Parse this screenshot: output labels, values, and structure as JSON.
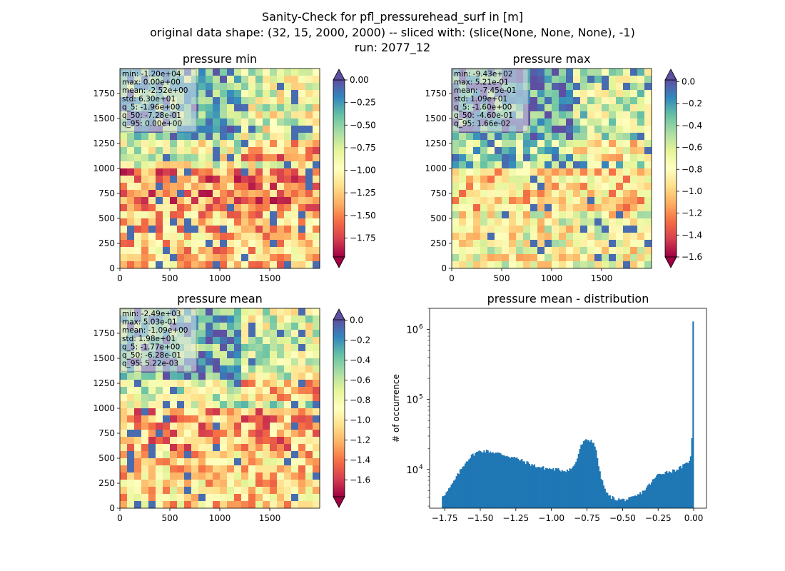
{
  "figure": {
    "title_lines": [
      "Sanity-Check for pfl_pressurehead_surf in [m]",
      "original data shape: (32, 15, 2000, 2000) -- sliced with: (slice(None, None, None), -1)",
      "run: 2077_12"
    ]
  },
  "chart_data": [
    {
      "type": "heatmap",
      "title": "pressure min",
      "xlim": [
        0,
        2000
      ],
      "ylim": [
        0,
        2000
      ],
      "xticks": [
        0,
        500,
        1000,
        1500
      ],
      "yticks": [
        0,
        250,
        500,
        750,
        1000,
        1250,
        1500,
        1750
      ],
      "stats": [
        "min: -1.20e+04",
        "max: 0.00e+00",
        "mean: -2.52e+00",
        "std: 6.30e+01",
        "q_5: -1.96e+00",
        "q_50: -7.28e-01",
        "q_95: 0.00e+00"
      ],
      "colorbar": {
        "colormap": "Spectral",
        "vmin": -1.96,
        "vmax": 0.0,
        "ticks": [
          0.0,
          -0.25,
          -0.5,
          -0.75,
          -1.0,
          -1.25,
          -1.5,
          -1.75
        ],
        "tick_labels": [
          "0.00",
          "−0.25",
          "−0.50",
          "−0.75",
          "−1.00",
          "−1.25",
          "−1.50",
          "−1.75"
        ],
        "extend": "both"
      }
    },
    {
      "type": "heatmap",
      "title": "pressure max",
      "xlim": [
        0,
        2000
      ],
      "ylim": [
        0,
        2000
      ],
      "xticks": [
        0,
        500,
        1000,
        1500
      ],
      "yticks": [
        0,
        250,
        500,
        750,
        1000,
        1250,
        1500,
        1750
      ],
      "stats": [
        "min: -9.43e+02",
        "max: 5.21e-01",
        "mean: -7.45e-01",
        "std: 1.09e+01",
        "q_5: -1.60e+00",
        "q_50: -4.60e-01",
        "q_95: 1.66e-02"
      ],
      "colorbar": {
        "colormap": "Spectral",
        "vmin": -1.6,
        "vmax": 0.0166,
        "ticks": [
          0.0,
          -0.2,
          -0.4,
          -0.6,
          -0.8,
          -1.0,
          -1.2,
          -1.4,
          -1.6
        ],
        "tick_labels": [
          "0.0",
          "−0.2",
          "−0.4",
          "−0.6",
          "−0.8",
          "−1.0",
          "−1.2",
          "−1.4",
          "−1.6"
        ],
        "extend": "both"
      }
    },
    {
      "type": "heatmap",
      "title": "pressure mean",
      "xlim": [
        0,
        2000
      ],
      "ylim": [
        0,
        2000
      ],
      "xticks": [
        0,
        500,
        1000,
        1500
      ],
      "yticks": [
        0,
        250,
        500,
        750,
        1000,
        1250,
        1500,
        1750
      ],
      "stats": [
        "min: -2.49e+03",
        "max: 5.03e-01",
        "mean: -1.09e+00",
        "std: 1.98e+01",
        "q_5: -1.77e+00",
        "q_50: -6.28e-01",
        "q_95: 5.22e-03"
      ],
      "colorbar": {
        "colormap": "Spectral",
        "vmin": -1.77,
        "vmax": 0.00522,
        "ticks": [
          0.0,
          -0.2,
          -0.4,
          -0.6,
          -0.8,
          -1.0,
          -1.2,
          -1.4,
          -1.6
        ],
        "tick_labels": [
          "0.0",
          "−0.2",
          "−0.4",
          "−0.6",
          "−0.8",
          "−1.0",
          "−1.2",
          "−1.4",
          "−1.6"
        ],
        "extend": "both"
      }
    },
    {
      "type": "bar",
      "title": "pressure mean - distribution",
      "ylabel": "# of occurrence",
      "xlim": [
        -1.856,
        0.09
      ],
      "ylim": [
        2800,
        2000000
      ],
      "yscale": "log",
      "color": "#1f77b4",
      "xticks": [
        -1.75,
        -1.5,
        -1.25,
        -1.0,
        -0.75,
        -0.5,
        -0.25,
        0.0
      ],
      "xtick_labels": [
        "−1.75",
        "−1.50",
        "−1.25",
        "−1.00",
        "−0.75",
        "−0.50",
        "−0.25",
        "0.00"
      ],
      "ytick_labels": [
        {
          "value": 10000,
          "base": "10",
          "exp": "4"
        },
        {
          "value": 100000,
          "base": "10",
          "exp": "5"
        },
        {
          "value": 1000000,
          "base": "10",
          "exp": "6"
        }
      ],
      "profile_x": [
        -1.77,
        -1.74,
        -1.7,
        -1.65,
        -1.6,
        -1.55,
        -1.5,
        -1.45,
        -1.4,
        -1.35,
        -1.3,
        -1.25,
        -1.2,
        -1.15,
        -1.1,
        -1.05,
        -1.0,
        -0.95,
        -0.9,
        -0.85,
        -0.82,
        -0.8,
        -0.78,
        -0.75,
        -0.72,
        -0.7,
        -0.68,
        -0.66,
        -0.64,
        -0.62,
        -0.6,
        -0.55,
        -0.5,
        -0.45,
        -0.4,
        -0.35,
        -0.3,
        -0.25,
        -0.2,
        -0.15,
        -0.1,
        -0.05,
        -0.02,
        -0.01,
        0.0
      ],
      "profile_y": [
        4200,
        4600,
        6000,
        9000,
        13000,
        16500,
        18500,
        18300,
        17500,
        16500,
        15500,
        14500,
        13200,
        12000,
        11000,
        10500,
        10200,
        9900,
        9700,
        10500,
        14000,
        20000,
        24000,
        26500,
        26000,
        24000,
        16000,
        9000,
        6500,
        5000,
        4200,
        3800,
        3700,
        3800,
        4200,
        5000,
        6500,
        8500,
        9200,
        9500,
        10500,
        12000,
        15000,
        28000,
        1300000
      ]
    }
  ]
}
